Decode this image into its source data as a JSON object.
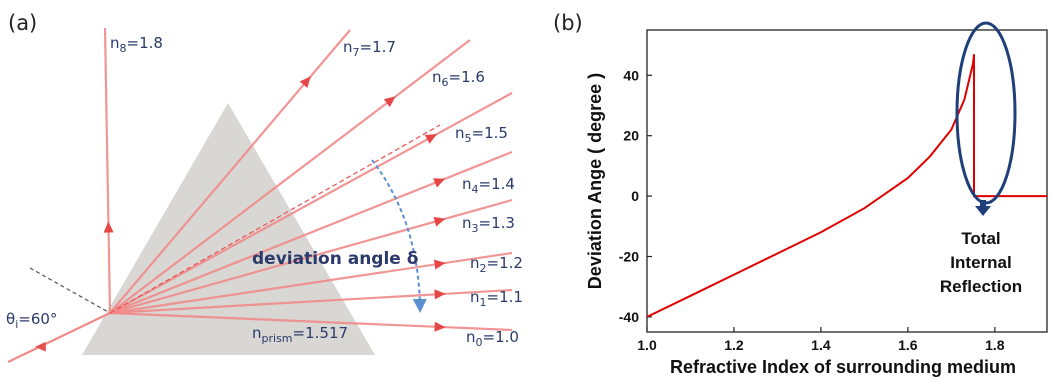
{
  "panel_a": {
    "letter": "(a)",
    "theta_i": "θi=60°",
    "theta_sym": "θ",
    "theta_sub": "i",
    "theta_val": "=60°",
    "prism_n": "1.517",
    "prism_sym": "n",
    "prism_sub": "prism",
    "deviation_label": "deviation angle δ",
    "rays": [
      {
        "sub": "8",
        "value": "1.8"
      },
      {
        "sub": "7",
        "value": "1.7"
      },
      {
        "sub": "6",
        "value": "1.6"
      },
      {
        "sub": "5",
        "value": "1.5"
      },
      {
        "sub": "4",
        "value": "1.4"
      },
      {
        "sub": "3",
        "value": "1.3"
      },
      {
        "sub": "2",
        "value": "1.2"
      },
      {
        "sub": "1",
        "value": "1.1"
      },
      {
        "sub": "0",
        "value": "1.0"
      }
    ],
    "colors": {
      "ray": "#f08a8a",
      "prism": "#d9d7d3",
      "label": "#2b3a6b",
      "arrow": "#5b8fd0"
    }
  },
  "panel_b": {
    "letter": "(b)",
    "annotation": [
      "Total",
      "Internal",
      "Reflection"
    ],
    "colors": {
      "curve": "#e00000",
      "ellipse": "#1f3f7a"
    }
  },
  "chart_data": {
    "type": "line",
    "xlabel": "Refractive Index of surrounding medium",
    "ylabel": "Deviation Ange ( degree )",
    "xlim": [
      1.0,
      1.92
    ],
    "ylim": [
      -45,
      55
    ],
    "xticks": [
      "1.0",
      "1.2",
      "1.4",
      "1.6",
      "1.8"
    ],
    "yticks": [
      "-40",
      "-20",
      "0",
      "20",
      "40"
    ],
    "series": [
      {
        "x": [
          1.0,
          1.1,
          1.2,
          1.3,
          1.4,
          1.5,
          1.6,
          1.65,
          1.7,
          1.73,
          1.75,
          1.752,
          1.752,
          1.92
        ],
        "values": [
          -40,
          -33,
          -26,
          -19,
          -12,
          -4,
          6,
          13,
          22,
          32,
          44,
          47,
          0,
          0
        ]
      }
    ]
  }
}
